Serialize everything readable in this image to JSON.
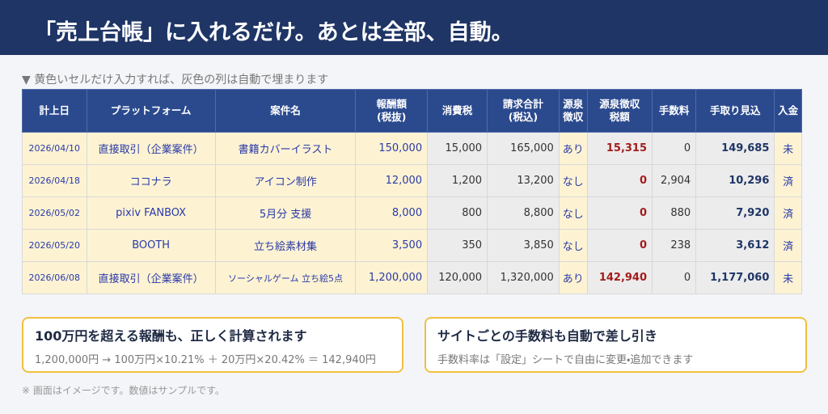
{
  "header": {
    "title": "「売上台帳」に入れるだけ。あとは全部、自動。"
  },
  "table": {
    "caption": "▼ 黄色いセルだけ入力すれば、灰色の列は自動で埋まります",
    "columns": [
      "計上日",
      "プラットフォーム",
      "案件名",
      "報酬額\n(税抜)",
      "消費税",
      "請求合計\n(税込)",
      "源泉\n徴収",
      "源泉徴収\n税額",
      "手数料",
      "手取り見込",
      "入金"
    ],
    "rows": [
      [
        "2026/04/10",
        "直接取引（企業案件）",
        "書籍カバーイラスト",
        "150,000",
        "15,000",
        "165,000",
        "あり",
        "15,315",
        "0",
        "149,685",
        "未"
      ],
      [
        "2026/04/18",
        "ココナラ",
        "アイコン制作",
        "12,000",
        "1,200",
        "13,200",
        "なし",
        "0",
        "2,904",
        "10,296",
        "済"
      ],
      [
        "2026/05/02",
        "pixiv FANBOX",
        "5月分 支援",
        "8,000",
        "800",
        "8,800",
        "なし",
        "0",
        "880",
        "7,920",
        "済"
      ],
      [
        "2026/05/20",
        "BOOTH",
        "立ち絵素材集",
        "3,500",
        "350",
        "3,850",
        "なし",
        "0",
        "238",
        "3,612",
        "済"
      ],
      [
        "2026/06/08",
        "直接取引（企業案件）",
        "ソーシャルゲーム 立ち絵5点",
        "1,200,000",
        "120,000",
        "1,320,000",
        "あり",
        "142,940",
        "0",
        "1,177,060",
        "未"
      ]
    ]
  },
  "notes": [
    {
      "title": "100万円を超える報酬も、正しく計算されます",
      "text": "1,200,000円 → 100万円×10.21% ＋ 20万円×20.42% ＝ 142,940円"
    },
    {
      "title": "サイトごとの手数料も自動で差し引き",
      "text": "手数料率は「設定」シートで自由に変更・追加できます"
    }
  ],
  "footnote": "※ 画面はイメージです。数値はサンプルです。"
}
